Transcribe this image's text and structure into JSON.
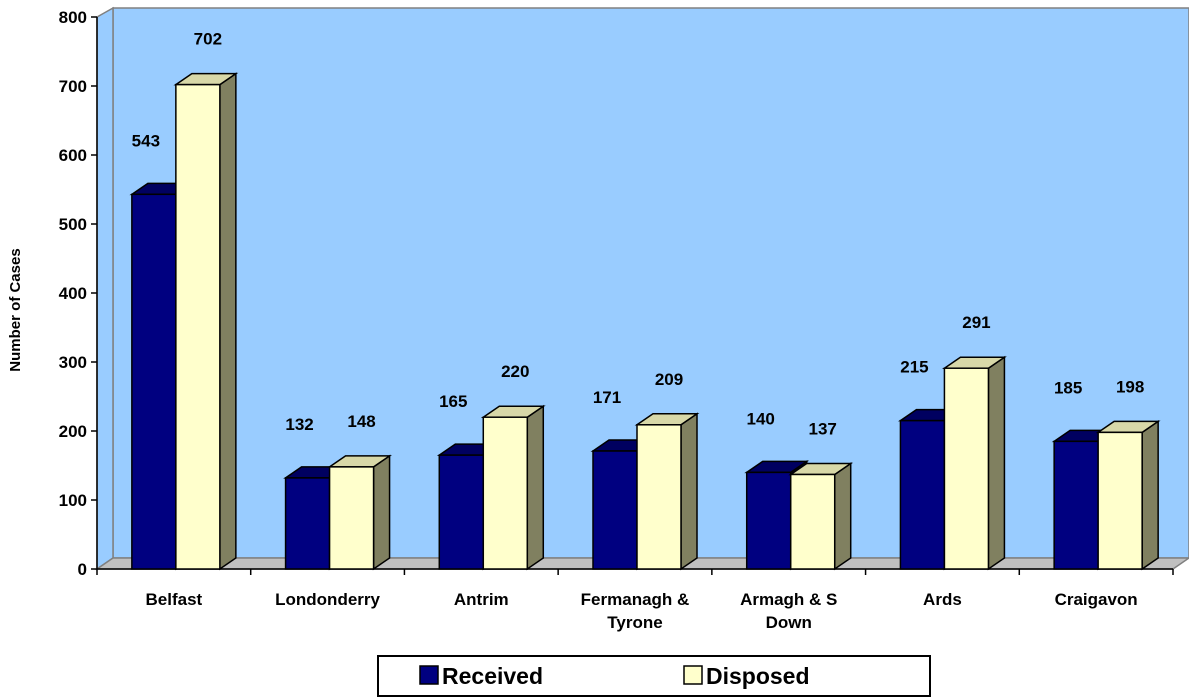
{
  "chart_data": {
    "type": "bar",
    "title": "",
    "xlabel": "",
    "ylabel": "Number of Cases",
    "ylim": [
      0,
      800
    ],
    "yticks": [
      "0",
      "100",
      "200",
      "300",
      "400",
      "500",
      "600",
      "700",
      "800"
    ],
    "categories": [
      "Belfast",
      "Londonderry",
      "Antrim",
      "Fermanagh & Tyrone",
      "Armagh & S Down",
      "Ards",
      "Craigavon"
    ],
    "series": [
      {
        "name": "Received",
        "values": [
          543,
          132,
          165,
          171,
          140,
          215,
          185
        ],
        "color": "#000080",
        "side_color": "#000040"
      },
      {
        "name": "Disposed",
        "values": [
          702,
          148,
          220,
          209,
          137,
          291,
          198
        ],
        "color": "#FFFFCC",
        "side_color": "#808060"
      }
    ],
    "plot_background": "#99CCFF",
    "floor_color": "#C0C0C0",
    "grid": false,
    "legend_position": "bottom",
    "three_d": true
  }
}
